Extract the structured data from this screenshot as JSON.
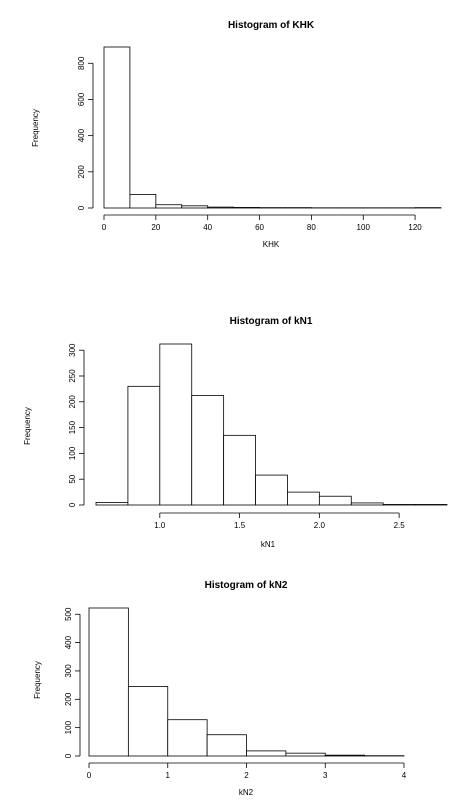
{
  "chart_data": [
    {
      "type": "bar",
      "title": "Histogram of KHK",
      "xlabel": "KHK",
      "ylabel": "Frequency",
      "bin_edges": [
        0,
        10,
        20,
        30,
        40,
        50,
        60,
        70,
        80,
        90,
        100,
        110,
        120,
        130
      ],
      "values": [
        890,
        75,
        18,
        12,
        5,
        3,
        2,
        2,
        1,
        1,
        1,
        1,
        2
      ],
      "xlim": [
        0,
        130
      ],
      "ylim": [
        0,
        890
      ],
      "xticks": [
        0,
        20,
        40,
        60,
        80,
        100,
        120
      ],
      "yticks": [
        0,
        200,
        400,
        600,
        800
      ],
      "grid": false
    },
    {
      "type": "bar",
      "title": "Histogram of kN1",
      "xlabel": "kN1",
      "ylabel": "Frequency",
      "bin_edges": [
        0.6,
        0.8,
        1.0,
        1.2,
        1.4,
        1.6,
        1.8,
        2.0,
        2.2,
        2.4,
        2.6,
        2.8
      ],
      "values": [
        5,
        230,
        312,
        212,
        135,
        58,
        25,
        17,
        4,
        1,
        1
      ],
      "xlim": [
        0.6,
        2.8
      ],
      "ylim": [
        0,
        312
      ],
      "xticks": [
        1.0,
        1.5,
        2.0,
        2.5
      ],
      "xtick_labels": [
        "1.0",
        "1.5",
        "2.0",
        "2.5"
      ],
      "yticks": [
        0,
        50,
        100,
        150,
        200,
        250,
        300
      ],
      "grid": false
    },
    {
      "type": "bar",
      "title": "Histogram of kN2",
      "xlabel": "kN2",
      "ylabel": "Frequency",
      "bin_edges": [
        0,
        0.5,
        1.0,
        1.5,
        2.0,
        2.5,
        3.0,
        3.5,
        4.0
      ],
      "values": [
        522,
        245,
        128,
        75,
        18,
        10,
        3,
        1
      ],
      "xlim": [
        0,
        4
      ],
      "ylim": [
        0,
        522
      ],
      "xticks": [
        0,
        1,
        2,
        3,
        4
      ],
      "yticks": [
        0,
        100,
        200,
        300,
        400,
        500
      ],
      "grid": false
    }
  ]
}
